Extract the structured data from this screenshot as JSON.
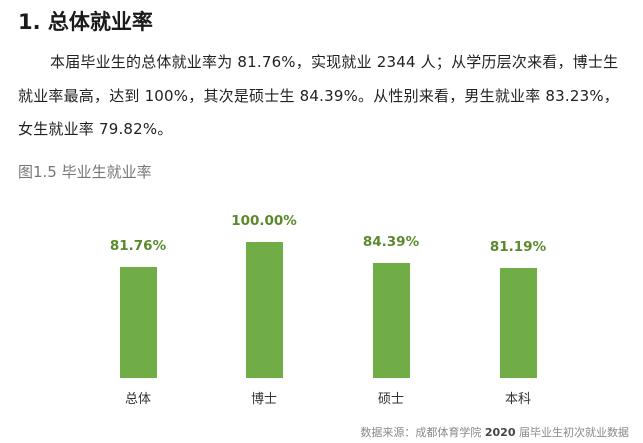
{
  "heading": "1.  总体就业率",
  "paragraph": "本届毕业生的总体就业率为 81.76%，实现就业 2344 人；从学历层次来看，博士生就业率最高，达到 100%，其次是硕士生 84.39%。从性别来看，男生就业率 83.23%，女生就业率 79.82%。",
  "figure_caption": "图1.5 毕业生就业率",
  "source": {
    "prefix": "数据来源：成都体育学院 ",
    "year": "2020",
    "suffix": " 届毕业生初次就业数据"
  },
  "colors": {
    "bar": "#70ad47",
    "value_label": "#5b8a2e"
  },
  "chart_data": {
    "type": "bar",
    "title": "图1.5 毕业生就业率",
    "categories": [
      "总体",
      "博士",
      "硕士",
      "本科"
    ],
    "values": [
      81.76,
      100.0,
      84.39,
      81.19
    ],
    "value_labels": [
      "81.76%",
      "100.00%",
      "84.39%",
      "81.19%"
    ],
    "xlabel": "",
    "ylabel": "",
    "grid": false,
    "legend": "none"
  }
}
